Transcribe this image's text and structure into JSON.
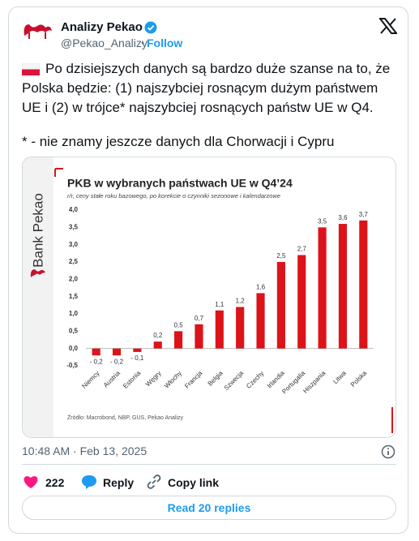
{
  "tweet": {
    "author": "Analizy Pekao",
    "handle": "@Pekao_Analizy",
    "follow": "Follow",
    "text": [
      "Po dzisiejszych danych są bardzo duże szanse na to, że",
      "Polska będzie: (1) najszybciej rosnącym dużym państwem",
      "UE i (2) w trójce* najszybciej rosnących państw UE w Q4.",
      "* - nie znamy jeszcze danych dla Chorwacji i Cypru"
    ],
    "timestamp": "10:48 AM · Feb 13, 2025",
    "likes": 222,
    "reply": "Reply",
    "copy_link": "Copy link",
    "read_replies": "Read 20 replies"
  },
  "chart_data": {
    "type": "bar",
    "brand": "Bank Pekao",
    "title": "PKB w wybranych państwach UE w Q4’24",
    "subtitle": "r/r, ceny stałe roku bazowego, po korekcie o czynniki sezonowe i kalendarzowe",
    "source": "Źródło: Macrobond, NBP, GUS, Pekao Analizy",
    "categories": [
      "Niemcy",
      "Austria",
      "Estonia",
      "Węgry",
      "Włochy",
      "Francja",
      "Belgia",
      "Szwecja",
      "Czechy",
      "Irlandia",
      "Portugalia",
      "Hiszpania",
      "Litwa",
      "Polska"
    ],
    "values": [
      -0.2,
      -0.2,
      -0.1,
      0.2,
      0.5,
      0.7,
      1.1,
      1.2,
      1.6,
      2.5,
      2.7,
      3.5,
      3.6,
      3.7
    ],
    "value_labels": [
      "- 0,2",
      "- 0,2",
      "- 0,1",
      "0,2",
      "0,5",
      "0,7",
      "1,1",
      "1,2",
      "1,6",
      "2,5",
      "2,7",
      "3,5",
      "3,6",
      "3,7"
    ],
    "color": "#dc1419",
    "ylim": [
      -0.5,
      4.0
    ],
    "yticks": [
      {
        "value": -0.5,
        "label": "-0,5"
      },
      {
        "value": 0,
        "label": "0,0"
      },
      {
        "value": 0.5,
        "label": "0,5"
      },
      {
        "value": 1.0,
        "label": "1,0"
      },
      {
        "value": 1.5,
        "label": "1,5"
      },
      {
        "value": 2.0,
        "label": "2,0"
      },
      {
        "value": 2.5,
        "label": "2,5"
      },
      {
        "value": 3.0,
        "label": "3,0"
      },
      {
        "value": 3.5,
        "label": "3,5"
      },
      {
        "value": 4.0,
        "label": "4,0"
      }
    ],
    "grid": false
  }
}
